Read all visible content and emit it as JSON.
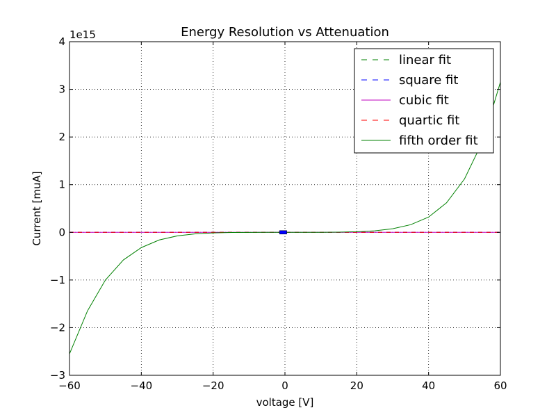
{
  "chart_data": {
    "type": "line",
    "title": "Energy Resolution vs Attenuation",
    "xlabel": "voltage [V]",
    "ylabel": "Current [muA]",
    "y_offset_text": "1e15",
    "y_scale": 1000000000000000.0,
    "xlim": [
      -60,
      60
    ],
    "ylim": [
      -3,
      4
    ],
    "xticks": [
      -60,
      -40,
      -20,
      0,
      20,
      40,
      60
    ],
    "yticks": [
      -3,
      -2,
      -1,
      0,
      1,
      2,
      3,
      4
    ],
    "xtick_labels": [
      "−60",
      "−40",
      "−20",
      "0",
      "20",
      "40",
      "60"
    ],
    "ytick_labels": [
      "−3",
      "−2",
      "−1",
      "0",
      "1",
      "2",
      "3",
      "4"
    ],
    "grid": true,
    "legend_position": "upper-right",
    "series": [
      {
        "name": "linear fit",
        "style": "dashed",
        "color": "#008000",
        "x": [
          -60,
          60
        ],
        "y": [
          0,
          0
        ]
      },
      {
        "name": "square fit",
        "style": "dashed",
        "color": "#0000ff",
        "x": [
          -60,
          60
        ],
        "y": [
          0,
          0
        ]
      },
      {
        "name": "cubic fit",
        "style": "solid",
        "color": "#bf00bf",
        "x": [
          -60,
          60
        ],
        "y": [
          0,
          0
        ]
      },
      {
        "name": "quartic fit",
        "style": "dashed",
        "color": "#ff0000",
        "x": [
          -60,
          60
        ],
        "y": [
          0,
          0
        ]
      },
      {
        "name": "fifth order fit",
        "style": "solid",
        "color": "#008000",
        "x": [
          -60,
          -55,
          -50,
          -45,
          -40,
          -35,
          -30,
          -25,
          -20,
          -15,
          -10,
          -5,
          0,
          5,
          10,
          15,
          20,
          25,
          30,
          35,
          40,
          45,
          50,
          55,
          60
        ],
        "y": [
          -2.55,
          -1.65,
          -1.0,
          -0.58,
          -0.32,
          -0.16,
          -0.075,
          -0.032,
          -0.012,
          -0.004,
          -0.001,
          -0.0001,
          0,
          0.0001,
          0.001,
          0.004,
          0.012,
          0.032,
          0.075,
          0.16,
          0.32,
          0.62,
          1.12,
          1.9,
          3.15
        ]
      }
    ],
    "data_markers": {
      "color": "#0000ff",
      "x_range": [
        -1.5,
        0.5
      ],
      "y": 0
    }
  }
}
